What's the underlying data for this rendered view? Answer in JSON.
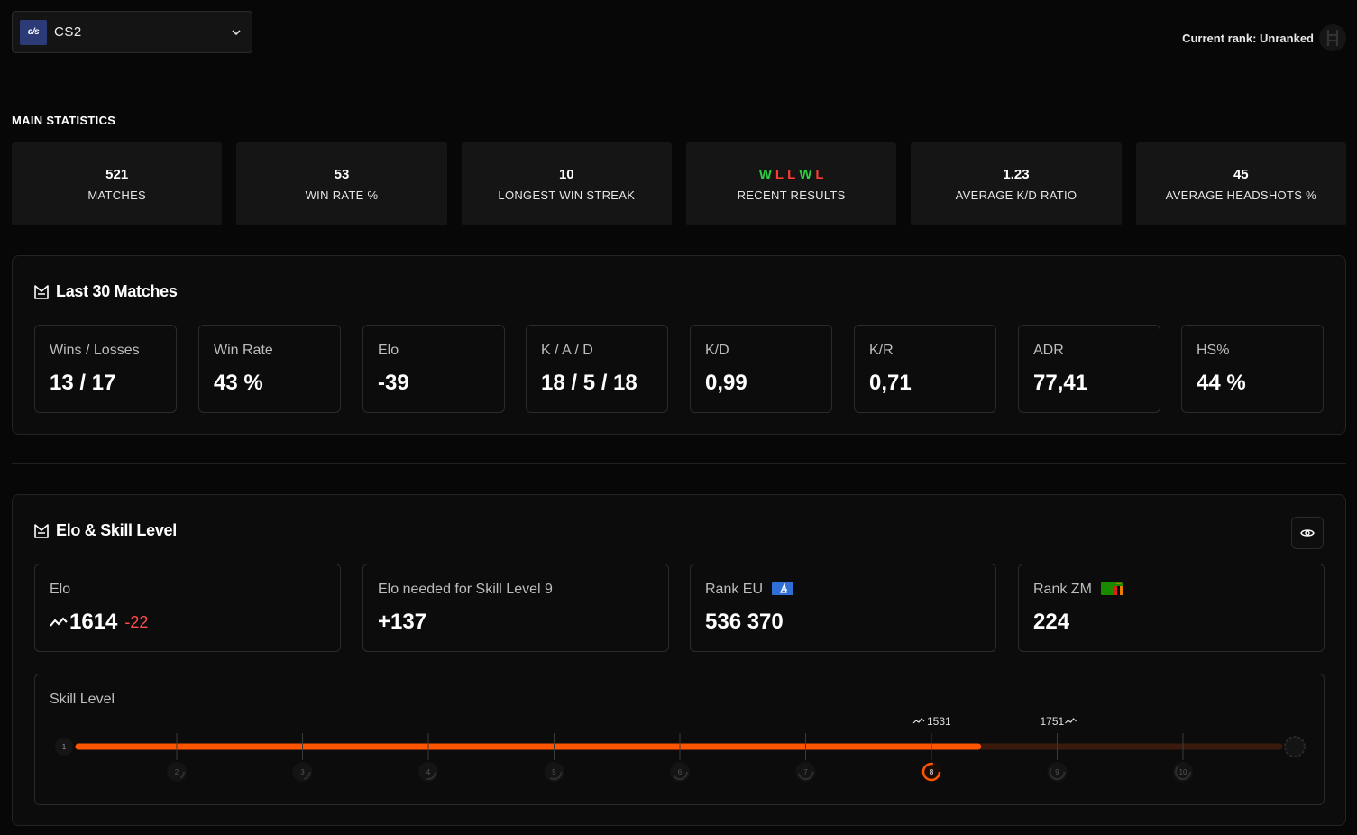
{
  "game_selector": {
    "logo_text": "c/s",
    "name": "CS2"
  },
  "rank": {
    "label": "Current rank: Unranked"
  },
  "main_statistics": {
    "title": "MAIN STATISTICS",
    "cards": [
      {
        "value": "521",
        "label": "MATCHES"
      },
      {
        "value": "53",
        "label": "WIN RATE %"
      },
      {
        "value": "10",
        "label": "LONGEST WIN STREAK"
      },
      {
        "value": "",
        "label": "RECENT RESULTS",
        "results": [
          "W",
          "L",
          "L",
          "W",
          "L"
        ]
      },
      {
        "value": "1.23",
        "label": "AVERAGE K/D RATIO"
      },
      {
        "value": "45",
        "label": "AVERAGE HEADSHOTS %"
      }
    ]
  },
  "last30": {
    "title": "Last 30 Matches",
    "cards": [
      {
        "label": "Wins / Losses",
        "value": "13 / 17"
      },
      {
        "label": "Win Rate",
        "value": "43 %"
      },
      {
        "label": "Elo",
        "value": "-39"
      },
      {
        "label": "K / A / D",
        "value": "18 / 5 / 18"
      },
      {
        "label": "K/D",
        "value": "0,99"
      },
      {
        "label": "K/R",
        "value": "0,71"
      },
      {
        "label": "ADR",
        "value": "77,41"
      },
      {
        "label": "HS%",
        "value": "44 %"
      }
    ]
  },
  "elo_skill": {
    "title": "Elo & Skill Level",
    "elo": {
      "label": "Elo",
      "value": "1614",
      "delta": "-22"
    },
    "elo_needed": {
      "label": "Elo needed for Skill Level 9",
      "value": "+137"
    },
    "rank_eu": {
      "label": "Rank EU",
      "value": "536 370"
    },
    "rank_zm": {
      "label": "Rank ZM",
      "value": "224"
    },
    "skill_level": {
      "label": "Skill Level",
      "levels": [
        "1",
        "2",
        "3",
        "4",
        "5",
        "6",
        "7",
        "8",
        "9",
        "10"
      ],
      "current_level": 8,
      "progress_fraction": 0.749,
      "lower_elo": "1531",
      "upper_elo": "1751",
      "accent": "#ff5500",
      "track_color": "#3a1a0c"
    }
  }
}
